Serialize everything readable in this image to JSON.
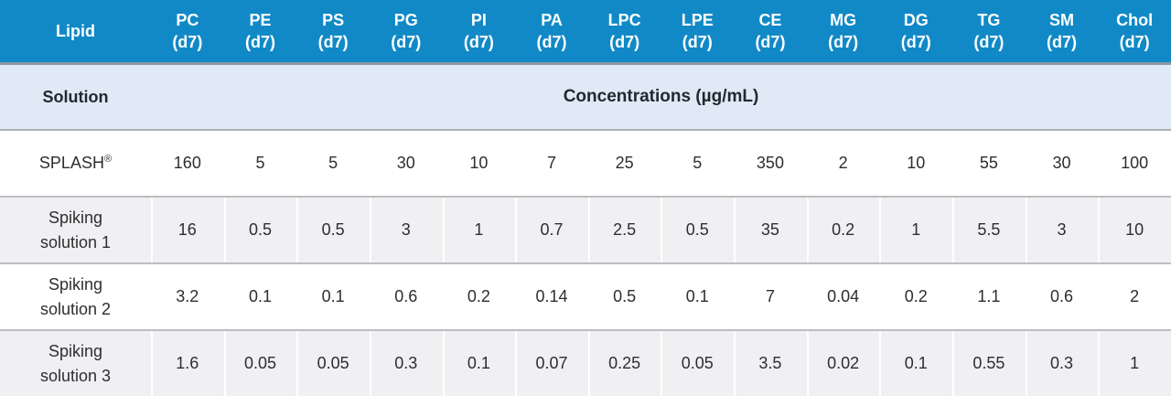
{
  "table": {
    "header": {
      "lipid_label": "Lipid",
      "columns": [
        {
          "name": "PC",
          "sub": "(d7)"
        },
        {
          "name": "PE",
          "sub": "(d7)"
        },
        {
          "name": "PS",
          "sub": "(d7)"
        },
        {
          "name": "PG",
          "sub": "(d7)"
        },
        {
          "name": "PI",
          "sub": "(d7)"
        },
        {
          "name": "PA",
          "sub": "(d7)"
        },
        {
          "name": "LPC",
          "sub": "(d7)"
        },
        {
          "name": "LPE",
          "sub": "(d7)"
        },
        {
          "name": "CE",
          "sub": "(d7)"
        },
        {
          "name": "MG",
          "sub": "(d7)"
        },
        {
          "name": "DG",
          "sub": "(d7)"
        },
        {
          "name": "TG",
          "sub": "(d7)"
        },
        {
          "name": "SM",
          "sub": "(d7)"
        },
        {
          "name": "Chol",
          "sub": "(d7)"
        }
      ]
    },
    "solution_row": {
      "label": "Solution",
      "concentrations_label": "Concentrations (µg/mL)"
    },
    "rows": [
      {
        "label": "SPLASH",
        "sup": "®",
        "values": [
          "160",
          "5",
          "5",
          "30",
          "10",
          "7",
          "25",
          "5",
          "350",
          "2",
          "10",
          "55",
          "30",
          "100"
        ]
      },
      {
        "label": "Spiking solution 1",
        "sup": "",
        "values": [
          "16",
          "0.5",
          "0.5",
          "3",
          "1",
          "0.7",
          "2.5",
          "0.5",
          "35",
          "0.2",
          "1",
          "5.5",
          "3",
          "10"
        ]
      },
      {
        "label": "Spiking solution 2",
        "sup": "",
        "values": [
          "3.2",
          "0.1",
          "0.1",
          "0.6",
          "0.2",
          "0.14",
          "0.5",
          "0.1",
          "7",
          "0.04",
          "0.2",
          "1.1",
          "0.6",
          "2"
        ]
      },
      {
        "label": "Spiking solution 3",
        "sup": "",
        "values": [
          "1.6",
          "0.05",
          "0.05",
          "0.3",
          "0.1",
          "0.07",
          "0.25",
          "0.05",
          "3.5",
          "0.02",
          "0.1",
          "0.55",
          "0.3",
          "1"
        ]
      }
    ],
    "colors": {
      "header_bg": "#1189c7",
      "header_text": "#ffffff",
      "solution_row_bg": "#e0eaf6",
      "stripe_row_bg": "#f0f0f2",
      "white_row_bg": "#ffffff",
      "dark_text": "#21282f",
      "body_text": "#2e2e30",
      "header_divider": "#8a98a1",
      "row_divider": "#bcbec2"
    }
  }
}
